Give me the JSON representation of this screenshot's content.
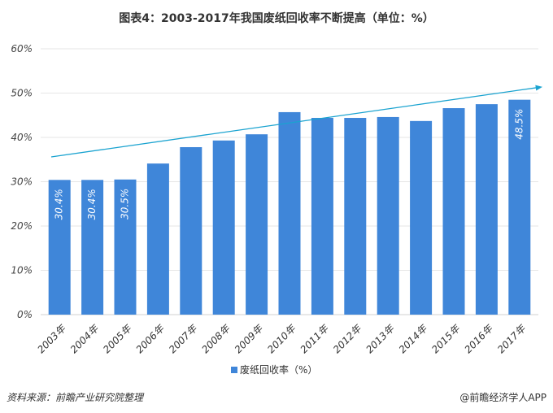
{
  "chart_data": {
    "type": "bar",
    "title": "图表4：2003-2017年我国废纸回收率不断提高（单位：%）",
    "categories": [
      "2003年",
      "2004年",
      "2005年",
      "2006年",
      "2007年",
      "2008年",
      "2009年",
      "2010年",
      "2011年",
      "2012年",
      "2013年",
      "2014年",
      "2015年",
      "2016年",
      "2017年"
    ],
    "series": [
      {
        "name": "废纸回收率（%）",
        "values": [
          30.4,
          30.4,
          30.5,
          34.1,
          37.8,
          39.3,
          40.7,
          45.7,
          44.4,
          44.4,
          44.6,
          43.7,
          46.6,
          47.5,
          48.5
        ]
      }
    ],
    "data_labels": {
      "0": "30.4%",
      "1": "30.4%",
      "2": "30.5%",
      "14": "48.5%"
    },
    "yticks": [
      "0%",
      "10%",
      "20%",
      "30%",
      "40%",
      "50%",
      "60%"
    ],
    "ylim": [
      0,
      60
    ],
    "grid": true,
    "legend": "bottom",
    "trend_arrow": {
      "from": 35.6,
      "to": 51.4
    },
    "colors": {
      "bar": "#3f86d9",
      "trend": "#1aa3d0"
    }
  },
  "footer": {
    "source": "资料来源：前瞻产业研究院整理",
    "credit": "@前瞻经济学人APP"
  }
}
